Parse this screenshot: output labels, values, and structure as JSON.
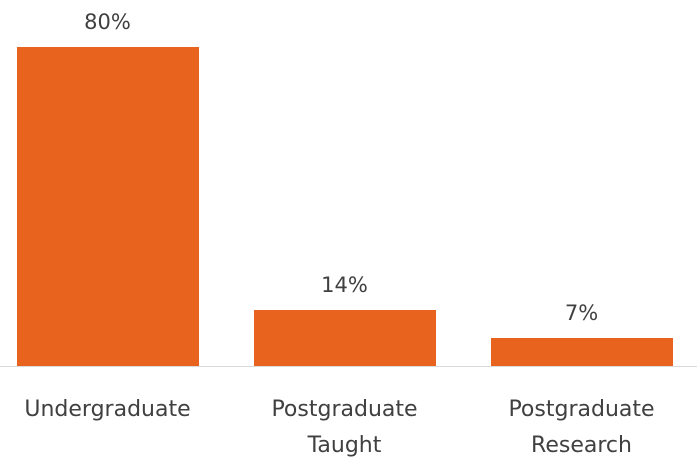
{
  "chart_data": {
    "type": "bar",
    "categories": [
      "Undergraduate",
      "Postgraduate Taught",
      "Postgraduate Research"
    ],
    "values": [
      80,
      14,
      7
    ],
    "value_labels": [
      "80%",
      "14%",
      "7%"
    ],
    "color": "#e8641e"
  }
}
